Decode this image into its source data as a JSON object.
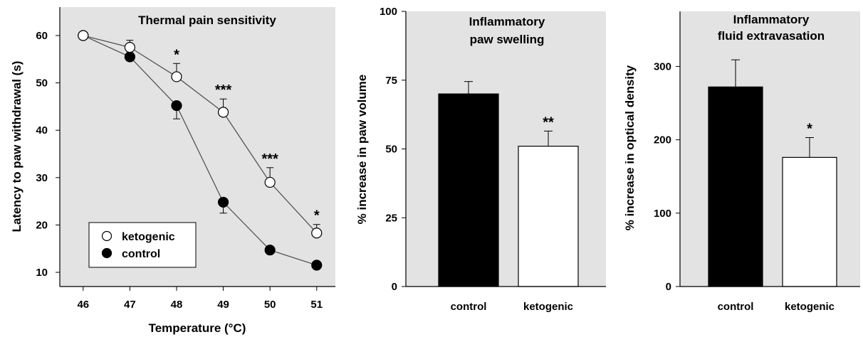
{
  "colors": {
    "panel_bg": "#e3e3e3",
    "axis": "#000000",
    "ketogenic": "#ffffff",
    "control": "#000000"
  },
  "chart_data": [
    {
      "type": "line",
      "title": "Thermal pain sensitivity",
      "xlabel": "Temperature (°C)",
      "ylabel": "Latency to paw withdrawal (s)",
      "x": [
        46,
        47,
        48,
        49,
        50,
        51
      ],
      "x_ticks": [
        "46",
        "47",
        "48",
        "49",
        "50",
        "51"
      ],
      "y_ticks": [
        "10",
        "20",
        "30",
        "40",
        "50",
        "60"
      ],
      "xlim": [
        45.5,
        51.4
      ],
      "ylim": [
        7,
        66
      ],
      "series": [
        {
          "name": "ketogenic",
          "marker": "open-circle",
          "values": [
            60,
            57.5,
            51.3,
            43.8,
            29,
            18.3
          ],
          "err": [
            0,
            1.5,
            2.8,
            2.8,
            3.1,
            1.8
          ]
        },
        {
          "name": "control",
          "marker": "filled-circle",
          "values": [
            60,
            55.5,
            45.2,
            24.8,
            14.7,
            11.5
          ],
          "err": [
            0,
            0.8,
            2.8,
            2.3,
            0.8,
            0.5
          ]
        }
      ],
      "significance": [
        "",
        "",
        "*",
        "***",
        "***",
        "*"
      ],
      "legend": {
        "position": "bottom-left",
        "entries": [
          "ketogenic",
          "control"
        ]
      },
      "grid": false
    },
    {
      "type": "bar",
      "title": [
        "Inflammatory",
        "paw swelling"
      ],
      "ylabel": "% increase in paw volume",
      "categories": [
        "control",
        "ketogenic"
      ],
      "values": [
        70,
        51
      ],
      "err": [
        4.5,
        5.5
      ],
      "bar_colors": [
        "#000000",
        "#ffffff"
      ],
      "y_ticks": [
        "0",
        "25",
        "50",
        "75",
        "100"
      ],
      "ylim": [
        0,
        100
      ],
      "significance": [
        "",
        "**"
      ],
      "grid": false
    },
    {
      "type": "bar",
      "title": [
        "Inflammatory",
        "fluid extravasation"
      ],
      "ylabel": "% increase in optical density",
      "categories": [
        "control",
        "ketogenic"
      ],
      "values": [
        272,
        176
      ],
      "err": [
        37,
        27
      ],
      "bar_colors": [
        "#000000",
        "#ffffff"
      ],
      "y_ticks": [
        "0",
        "100",
        "200",
        "300"
      ],
      "ylim": [
        0,
        375
      ],
      "significance": [
        "",
        "*"
      ],
      "grid": false
    }
  ]
}
